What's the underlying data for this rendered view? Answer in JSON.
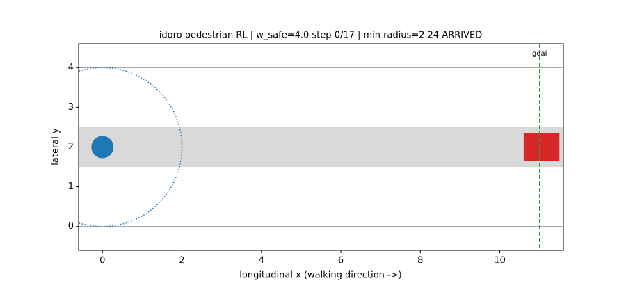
{
  "chart_data": {
    "type": "scene",
    "title": "idoro pedestrian RL  |  w_safe=4.0  step 0/17  |  min radius=2.24 ARRIVED",
    "x_label": "longitudinal x (walking direction ->)",
    "y_label": "lateral y",
    "xlim": [
      -0.6,
      11.6
    ],
    "ylim": [
      -0.6,
      4.6
    ],
    "xticks": [
      0,
      2,
      4,
      6,
      8,
      10
    ],
    "yticks": [
      0,
      1,
      2,
      3,
      4
    ],
    "boundaries": [
      0,
      4
    ],
    "boundary_color": "#999999",
    "band": [
      1.5,
      2.5
    ],
    "band_color": "#d9d9d9",
    "pedestrian": {
      "x": 0,
      "y": 2,
      "radius": 0.28,
      "color": "#1f77b4"
    },
    "safe_radius": 2,
    "vehicle": {
      "x": 11.05,
      "y": 2,
      "width": 0.9,
      "height": 0.7,
      "color": "#d62728"
    },
    "goal": {
      "x": 11,
      "label": "goal",
      "color": "#2ca02c"
    }
  }
}
